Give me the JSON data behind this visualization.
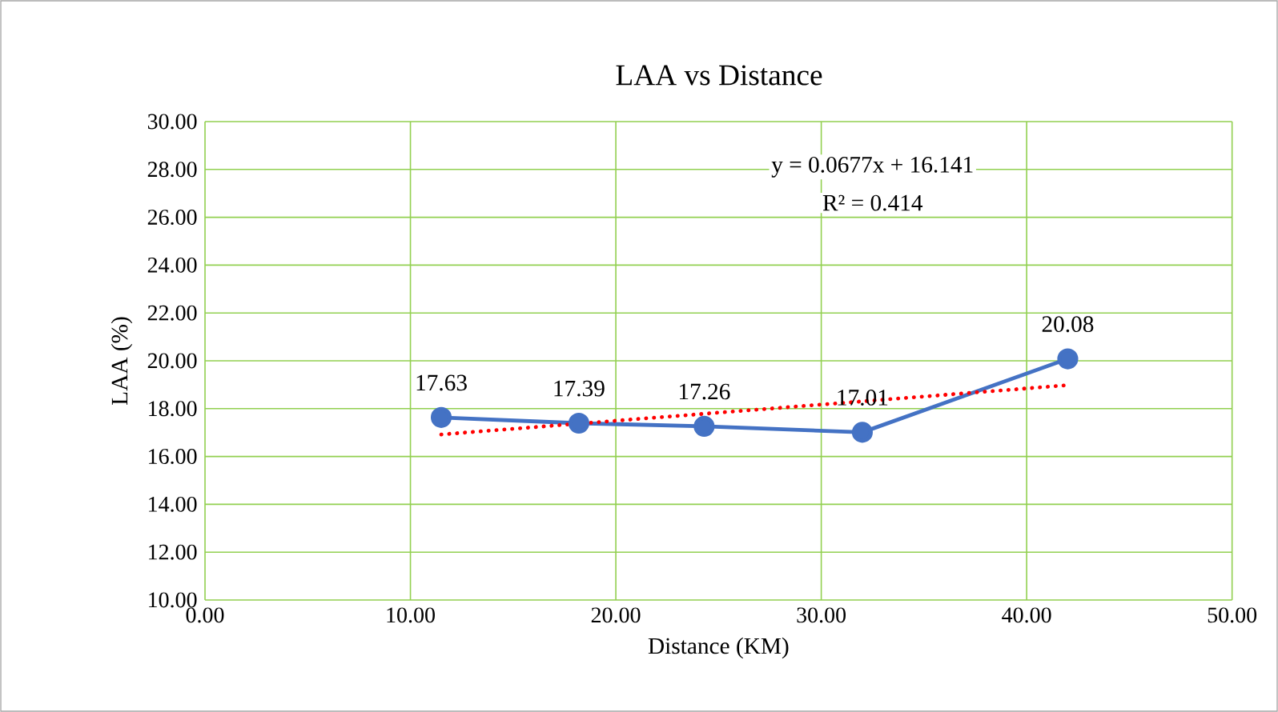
{
  "chart_data": {
    "type": "line",
    "title": "LAA vs Distance",
    "xlabel": "Distance (KM)",
    "ylabel": "LAA (%)",
    "xlim": [
      0,
      50
    ],
    "ylim": [
      10,
      30
    ],
    "xticks": [
      {
        "value": 0,
        "label": "0.00"
      },
      {
        "value": 10,
        "label": "10.00"
      },
      {
        "value": 20,
        "label": "20.00"
      },
      {
        "value": 30,
        "label": "30.00"
      },
      {
        "value": 40,
        "label": "40.00"
      },
      {
        "value": 50,
        "label": "50.00"
      }
    ],
    "yticks": [
      {
        "value": 10,
        "label": "10.00"
      },
      {
        "value": 12,
        "label": "12.00"
      },
      {
        "value": 14,
        "label": "14.00"
      },
      {
        "value": 16,
        "label": "16.00"
      },
      {
        "value": 18,
        "label": "18.00"
      },
      {
        "value": 20,
        "label": "20.00"
      },
      {
        "value": 22,
        "label": "22.00"
      },
      {
        "value": 24,
        "label": "24.00"
      },
      {
        "value": 26,
        "label": "26.00"
      },
      {
        "value": 28,
        "label": "28.00"
      },
      {
        "value": 30,
        "label": "30.00"
      }
    ],
    "grid": true,
    "series": [
      {
        "type": "line",
        "color": "#4472c4",
        "marker": "circle",
        "line_style": "solid",
        "x": [
          11.5,
          18.2,
          24.3,
          32.0,
          42.0
        ],
        "values": [
          17.63,
          17.39,
          17.26,
          17.01,
          20.08
        ],
        "value_labels": [
          "17.63",
          "17.39",
          "17.26",
          "17.01",
          "20.08"
        ]
      },
      {
        "type": "line",
        "color": "#ff0000",
        "marker": "none",
        "line_style": "dotted",
        "x": [
          11.5,
          42.0
        ],
        "values": [
          16.92,
          18.98
        ]
      }
    ],
    "annotations": [
      "y = 0.0677x + 16.141",
      "R² = 0.414"
    ]
  }
}
